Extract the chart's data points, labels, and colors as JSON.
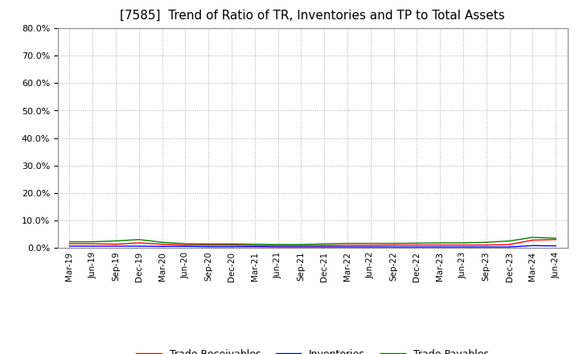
{
  "title": "[7585]  Trend of Ratio of TR, Inventories and TP to Total Assets",
  "ylim": [
    0.0,
    0.8
  ],
  "yticks": [
    0.0,
    0.1,
    0.2,
    0.3,
    0.4,
    0.5,
    0.6,
    0.7,
    0.8
  ],
  "x_labels": [
    "Mar-19",
    "Jun-19",
    "Sep-19",
    "Dec-19",
    "Mar-20",
    "Jun-20",
    "Sep-20",
    "Dec-20",
    "Mar-21",
    "Jun-21",
    "Sep-21",
    "Dec-21",
    "Mar-22",
    "Jun-22",
    "Sep-22",
    "Dec-22",
    "Mar-23",
    "Jun-23",
    "Sep-23",
    "Dec-23",
    "Mar-24",
    "Jun-24"
  ],
  "trade_receivables": [
    0.015,
    0.015,
    0.013,
    0.018,
    0.013,
    0.01,
    0.01,
    0.01,
    0.008,
    0.008,
    0.008,
    0.008,
    0.009,
    0.009,
    0.01,
    0.01,
    0.01,
    0.01,
    0.01,
    0.012,
    0.028,
    0.03
  ],
  "inventories": [
    0.006,
    0.006,
    0.006,
    0.006,
    0.005,
    0.005,
    0.004,
    0.004,
    0.004,
    0.003,
    0.003,
    0.003,
    0.003,
    0.003,
    0.003,
    0.003,
    0.003,
    0.003,
    0.003,
    0.003,
    0.008,
    0.007
  ],
  "trade_payables": [
    0.022,
    0.022,
    0.025,
    0.03,
    0.02,
    0.015,
    0.014,
    0.014,
    0.013,
    0.012,
    0.012,
    0.014,
    0.016,
    0.016,
    0.016,
    0.017,
    0.018,
    0.018,
    0.02,
    0.025,
    0.038,
    0.035
  ],
  "tr_color": "#ff0000",
  "inv_color": "#0000ff",
  "tp_color": "#008000",
  "background_color": "#ffffff",
  "grid_color": "#aaaaaa",
  "title_fontsize": 11,
  "legend_labels": [
    "Trade Receivables",
    "Inventories",
    "Trade Payables"
  ]
}
